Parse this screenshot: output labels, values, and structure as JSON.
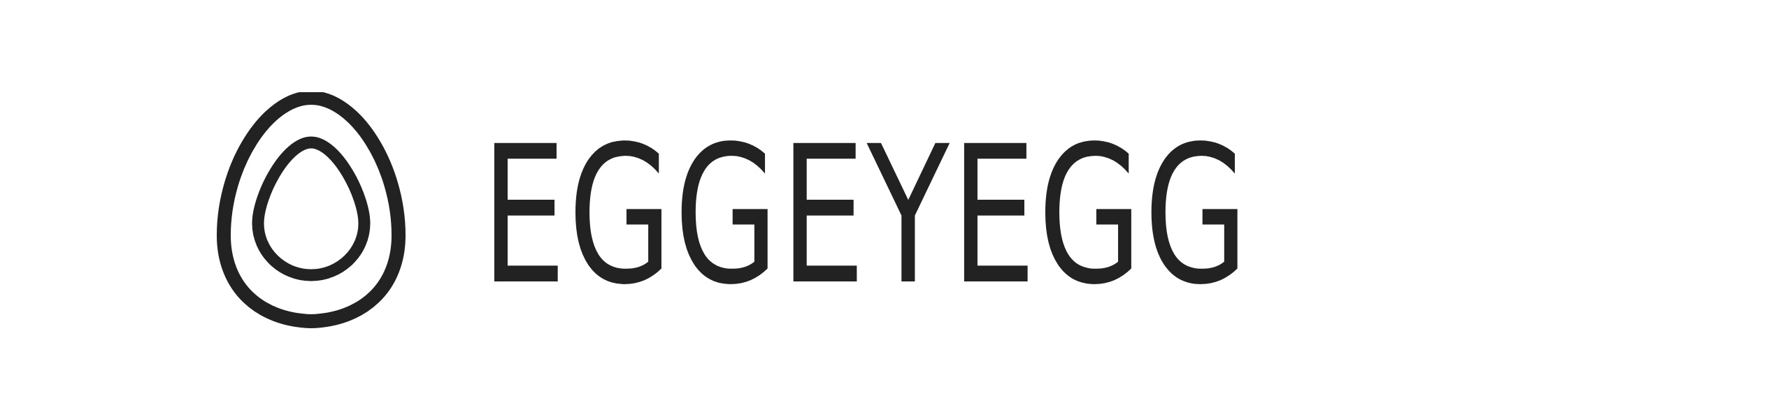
{
  "brand": {
    "logo_icon": "egg-outline-icon",
    "wordmark": "EGGEYEGG",
    "ink_color": "#222222",
    "background_color": "#ffffff"
  }
}
